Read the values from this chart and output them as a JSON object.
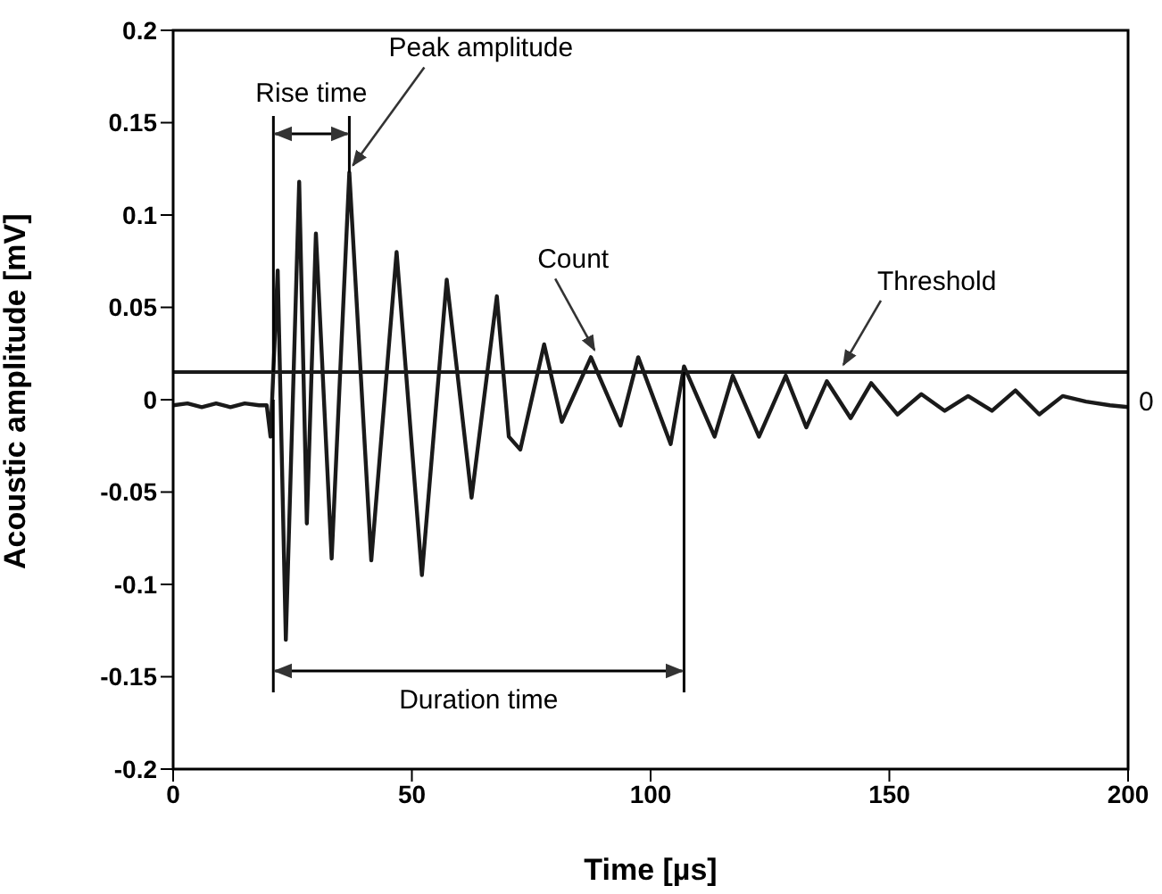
{
  "chart_data": {
    "type": "line",
    "xlabel": "Time [µs]",
    "ylabel": "Acoustic amplitude [mV]",
    "x": [
      0,
      3,
      6,
      9,
      12,
      15,
      18,
      19.6,
      20.4,
      21.9,
      23.6,
      26.4,
      28.0,
      29.9,
      33.2,
      36.9,
      41.5,
      46.8,
      52.1,
      57.3,
      62.5,
      67.8,
      70.3,
      72.7,
      77.7,
      81.4,
      87.5,
      93.7,
      97.4,
      104.2,
      107,
      113.4,
      117.2,
      122.7,
      128.3,
      132.6,
      136.9,
      141.9,
      146.2,
      151.7,
      156.7,
      161.6,
      166.5,
      171.5,
      176.4,
      181.4,
      186.3,
      191.2,
      196.2,
      200
    ],
    "series": [
      {
        "color": "#1a1a1a",
        "values": [
          -0.003,
          -0.002,
          -0.004,
          -0.002,
          -0.004,
          -0.002,
          -0.003,
          -0.003,
          -0.02,
          0.07,
          -0.13,
          0.118,
          -0.067,
          0.09,
          -0.086,
          0.123,
          -0.087,
          0.08,
          -0.095,
          0.065,
          -0.053,
          0.056,
          -0.02,
          -0.027,
          0.03,
          -0.012,
          0.023,
          -0.014,
          0.023,
          -0.024,
          0.018,
          -0.02,
          0.013,
          -0.02,
          0.013,
          -0.015,
          0.01,
          -0.01,
          0.009,
          -0.008,
          0.003,
          -0.006,
          0.002,
          -0.006,
          0.005,
          -0.008,
          0.002,
          -0.001,
          -0.003,
          -0.004
        ]
      }
    ],
    "xlim": [
      0,
      200
    ],
    "xticks": [
      0,
      50,
      100,
      150,
      200
    ],
    "ylim": [
      -0.2,
      0.2
    ],
    "yticks": [
      -0.2,
      -0.15,
      -0.1,
      -0.05,
      0,
      0.05,
      0.1,
      0.15,
      0.2
    ],
    "ref_lines": [
      {
        "axis": "y",
        "value": 0.015,
        "label": "Threshold",
        "color": "#1a1a1a"
      }
    ],
    "annotations": [
      {
        "text": "Rise time",
        "x": 21,
        "y": 0.015
      },
      "Duration time",
      "0",
      {
        "text": "Peak amplitude",
        "x": 36.9,
        "y": 0.123
      },
      {
        "text": "Count",
        "x": 87.5,
        "y": 0.023
      }
    ],
    "grid": false,
    "legend": false,
    "marker": "none",
    "line_style": "solid"
  }
}
